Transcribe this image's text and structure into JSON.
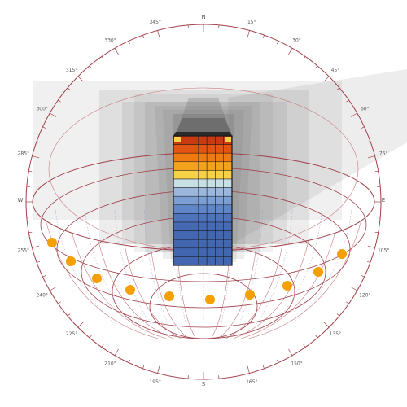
{
  "cardinal_labels": {
    "north": "N",
    "south": "S",
    "east": "E",
    "west": "W"
  },
  "azimuth_labels": [
    {
      "label": "15°",
      "deg": 15
    },
    {
      "label": "30°",
      "deg": 30
    },
    {
      "label": "45°",
      "deg": 45
    },
    {
      "label": "60°",
      "deg": 60
    },
    {
      "label": "75°",
      "deg": 75
    },
    {
      "label": "105°",
      "deg": 105
    },
    {
      "label": "120°",
      "deg": 120
    },
    {
      "label": "135°",
      "deg": 135
    },
    {
      "label": "150°",
      "deg": 150
    },
    {
      "label": "165°",
      "deg": 165
    },
    {
      "label": "195°",
      "deg": 195
    },
    {
      "label": "210°",
      "deg": 210
    },
    {
      "label": "225°",
      "deg": 225
    },
    {
      "label": "240°",
      "deg": 240
    },
    {
      "label": "255°",
      "deg": 255
    },
    {
      "label": "285°",
      "deg": 285
    },
    {
      "label": "300°",
      "deg": 300
    },
    {
      "label": "315°",
      "deg": 315
    },
    {
      "label": "330°",
      "deg": 330
    },
    {
      "label": "345°",
      "deg": 345
    }
  ],
  "colors": {
    "dome_line": "#a0404a",
    "grid_line": "#c87880",
    "hour_line": "#9a9ad0",
    "sun_marker": "#f5a000",
    "building_outline": "#1a1a1a",
    "shadow": "#6e6e6e"
  },
  "building_facade_colors": [
    "#c83a12",
    "#e25412",
    "#ee7a12",
    "#f3a21c",
    "#f8d246",
    "#c8dfe6",
    "#9bb8dc",
    "#7b9fd4",
    "#5f86c8",
    "#4d73bb",
    "#4669b3",
    "#4266b0",
    "#4266b0",
    "#4266b0",
    "#4266b0"
  ]
}
